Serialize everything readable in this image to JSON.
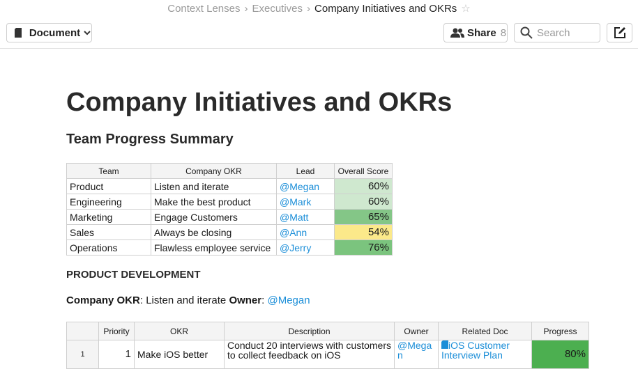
{
  "breadcrumb": [
    "Context Lenses",
    "Executives",
    "Company Initiatives and OKRs"
  ],
  "toolbar": {
    "document": "Document",
    "share": "Share",
    "share_count": 8,
    "search": "Search"
  },
  "title": "Company Initiatives and OKRs",
  "summary": {
    "heading": "Team Progress Summary",
    "columns": [
      "Team",
      "Company OKR",
      "Lead",
      "Overall Score"
    ],
    "rows": [
      [
        "Product",
        "Listen and iterate",
        "@Megan",
        "60%"
      ],
      [
        "Engineering",
        "Make the best product",
        "@Mark",
        "60%"
      ],
      [
        "Marketing",
        "Engage Customers",
        "@Matt",
        "65%"
      ],
      [
        "Sales",
        "Always be closing",
        "@Ann",
        "54%"
      ],
      [
        "Operations",
        "Flawless employee service",
        "@Jerry",
        "76%"
      ]
    ]
  },
  "section": {
    "heading": "PRODUCT DEVELOPMENT",
    "okr_label": "Company OKR",
    "okr": "Listen and iterate",
    "owner_label": "Owner",
    "owner": "@Megan"
  },
  "detail": {
    "columns": [
      "Priority",
      "OKR",
      "Description",
      "Owner",
      "Related Doc",
      "Progress"
    ],
    "rows": [
      {
        "row": 1,
        "cells": [
          1,
          "Make iOS better",
          "Conduct 20 interviews with customers to collect feedback on iOS",
          "@Megan",
          "iOS Customer Interview Plan",
          "80%"
        ]
      }
    ]
  }
}
